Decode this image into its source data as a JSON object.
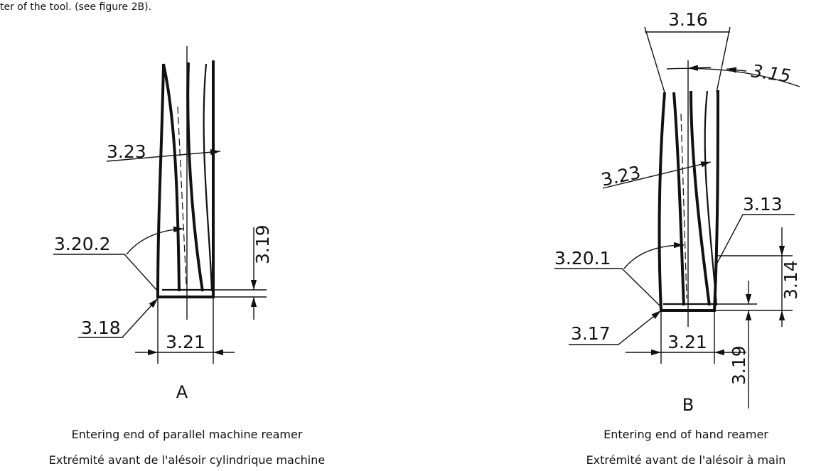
{
  "header_text": "ter of the tool. (see figure 2B).",
  "figures": [
    {
      "letter": "A",
      "caption_en": "Entering end of parallel machine reamer",
      "caption_fr": "Extrémité avant de l'alésoir cylindrique machine",
      "labels": {
        "helix": "3.23",
        "chamfer_angle": "3.20.2",
        "chamfer_length": "3.19",
        "bevel": "3.18",
        "diameter": "3.21"
      }
    },
    {
      "letter": "B",
      "caption_en": "Entering end of hand reamer",
      "caption_fr": "Extrémité avant de l'alésoir à main",
      "labels": {
        "taper_diameter": "3.16",
        "taper_angle": "3.15",
        "helix": "3.23",
        "bevel_lead": "3.13",
        "chamfer_angle": "3.20.1",
        "bevel_length": "3.14",
        "bevel": "3.17",
        "diameter": "3.21",
        "chamfer_length": "3.19"
      }
    }
  ]
}
